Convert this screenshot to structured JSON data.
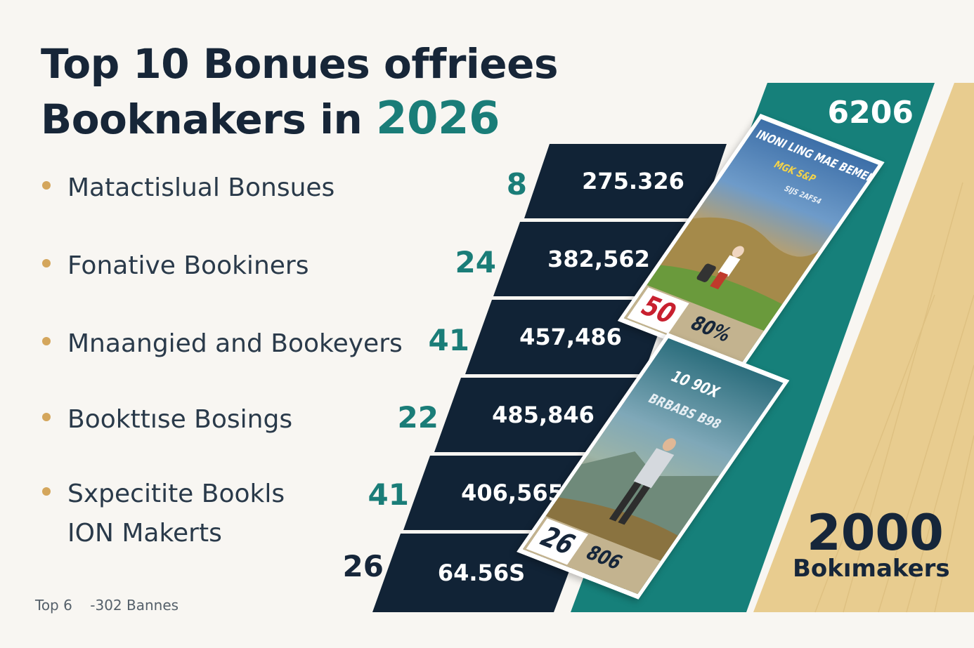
{
  "title": {
    "line1": "Top 10 Bonues offriees",
    "line2_prefix": "Booknakers in ",
    "line2_year": "2026"
  },
  "list": [
    {
      "label": "Matactislual Bonsues",
      "count": "8",
      "value": "275.326"
    },
    {
      "label": "Fonative Bookiners",
      "count": "24",
      "value": "382,562"
    },
    {
      "label": "Mnaangied and Bookeyers",
      "count": "41",
      "value": "457,486"
    },
    {
      "label": "Bookttıse Bosings",
      "count": "22",
      "value": "485,846"
    },
    {
      "label": "Sxpecitite Bookls",
      "label2": "ION Makerts",
      "count": "41",
      "value": "406,565"
    },
    {
      "label": "",
      "count": "26",
      "value": "64.56S"
    }
  ],
  "side_panel": {
    "top_number": "6206",
    "card1": {
      "caption": "INONI LING MAE BEMEN",
      "sub": "MGK S&P",
      "sub2": "SIJS 2AFS4",
      "badge_num": "50",
      "badge_pct": "80%"
    },
    "card2": {
      "caption": "10 90X",
      "sub": "BRBABS B98",
      "badge_num": "26",
      "badge_pct": "806"
    }
  },
  "gold_panel": {
    "number": "2000",
    "label": "Bokımakers"
  },
  "footer": "Top 6    -302 Bannes",
  "colors": {
    "navy": "#112336",
    "teal": "#1a7d78",
    "gold": "#e8cc8f",
    "bullet": "#d4a65c",
    "background": "#f8f6f2"
  }
}
